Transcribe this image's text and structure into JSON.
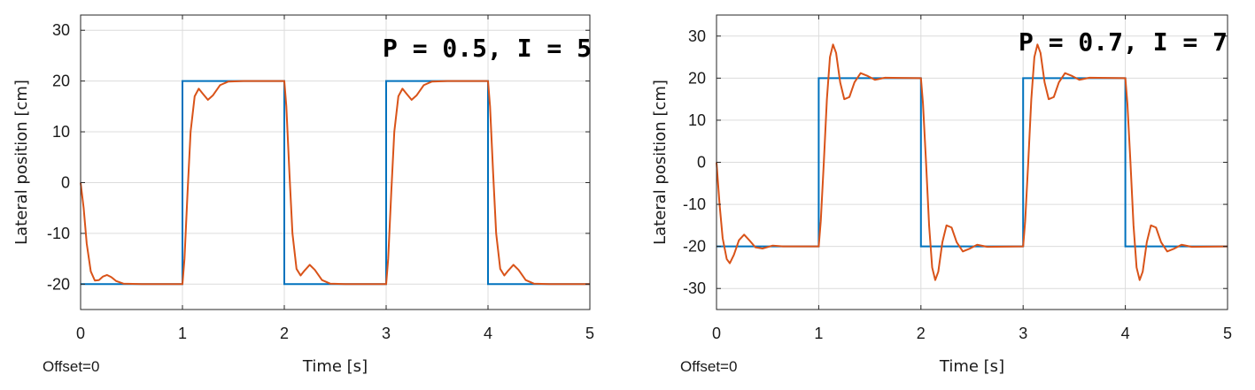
{
  "chart_data": [
    {
      "type": "line",
      "annotation": "P = 0.5, I = 5",
      "xlabel": "Time [s]",
      "ylabel": "Lateral position [cm]",
      "footnote": "Offset=0",
      "xlim": [
        0,
        5
      ],
      "ylim": [
        -25,
        33
      ],
      "xticks": [
        0,
        1,
        2,
        3,
        4,
        5
      ],
      "yticks": [
        -20,
        -10,
        0,
        10,
        20,
        30
      ],
      "grid": true,
      "series": [
        {
          "color": "#0072bd",
          "points": [
            [
              0,
              -20
            ],
            [
              1,
              -20
            ],
            [
              1,
              20
            ],
            [
              2,
              20
            ],
            [
              2,
              -20
            ],
            [
              3,
              -20
            ],
            [
              3,
              20
            ],
            [
              4,
              20
            ],
            [
              4,
              -20
            ],
            [
              5,
              -20
            ]
          ]
        },
        {
          "color": "#d95319",
          "points": [
            [
              0,
              0
            ],
            [
              0.03,
              -5
            ],
            [
              0.06,
              -12
            ],
            [
              0.1,
              -17.5
            ],
            [
              0.14,
              -19.3
            ],
            [
              0.18,
              -19.2
            ],
            [
              0.22,
              -18.5
            ],
            [
              0.26,
              -18.2
            ],
            [
              0.3,
              -18.6
            ],
            [
              0.35,
              -19.4
            ],
            [
              0.42,
              -19.9
            ],
            [
              0.6,
              -20
            ],
            [
              1.0,
              -20
            ],
            [
              1.02,
              -15
            ],
            [
              1.05,
              -2
            ],
            [
              1.08,
              10
            ],
            [
              1.12,
              17
            ],
            [
              1.16,
              18.5
            ],
            [
              1.2,
              17.5
            ],
            [
              1.25,
              16.3
            ],
            [
              1.3,
              17.2
            ],
            [
              1.37,
              19.2
            ],
            [
              1.45,
              19.9
            ],
            [
              1.6,
              20
            ],
            [
              2.0,
              20
            ],
            [
              2.02,
              15
            ],
            [
              2.05,
              2
            ],
            [
              2.08,
              -10
            ],
            [
              2.12,
              -17
            ],
            [
              2.16,
              -18.3
            ],
            [
              2.2,
              -17.3
            ],
            [
              2.25,
              -16.2
            ],
            [
              2.3,
              -17.2
            ],
            [
              2.37,
              -19.2
            ],
            [
              2.45,
              -19.9
            ],
            [
              2.6,
              -20
            ],
            [
              3.0,
              -20
            ],
            [
              3.02,
              -15
            ],
            [
              3.05,
              -2
            ],
            [
              3.08,
              10
            ],
            [
              3.12,
              17
            ],
            [
              3.16,
              18.5
            ],
            [
              3.2,
              17.5
            ],
            [
              3.25,
              16.3
            ],
            [
              3.3,
              17.2
            ],
            [
              3.37,
              19.2
            ],
            [
              3.45,
              19.9
            ],
            [
              3.6,
              20
            ],
            [
              4.0,
              20
            ],
            [
              4.02,
              15
            ],
            [
              4.05,
              2
            ],
            [
              4.08,
              -10
            ],
            [
              4.12,
              -17
            ],
            [
              4.16,
              -18.3
            ],
            [
              4.2,
              -17.3
            ],
            [
              4.25,
              -16.2
            ],
            [
              4.3,
              -17.2
            ],
            [
              4.37,
              -19.2
            ],
            [
              4.45,
              -19.9
            ],
            [
              4.6,
              -20
            ],
            [
              5.0,
              -20
            ]
          ]
        }
      ]
    },
    {
      "type": "line",
      "annotation": "P = 0.7, I = 7",
      "xlabel": "Time [s]",
      "ylabel": "Lateral position [cm]",
      "footnote": "Offset=0",
      "xlim": [
        0,
        5
      ],
      "ylim": [
        -35,
        35
      ],
      "xticks": [
        0,
        1,
        2,
        3,
        4,
        5
      ],
      "yticks": [
        -30,
        -20,
        -10,
        0,
        10,
        20,
        30
      ],
      "grid": true,
      "series": [
        {
          "color": "#0072bd",
          "points": [
            [
              0,
              -20
            ],
            [
              1,
              -20
            ],
            [
              1,
              20
            ],
            [
              2,
              20
            ],
            [
              2,
              -20
            ],
            [
              3,
              -20
            ],
            [
              3,
              20
            ],
            [
              4,
              20
            ],
            [
              4,
              -20
            ],
            [
              5,
              -20
            ]
          ]
        },
        {
          "color": "#d95319",
          "points": [
            [
              0,
              0
            ],
            [
              0.03,
              -10
            ],
            [
              0.06,
              -18
            ],
            [
              0.1,
              -23
            ],
            [
              0.13,
              -24
            ],
            [
              0.17,
              -22
            ],
            [
              0.22,
              -18.5
            ],
            [
              0.27,
              -17.2
            ],
            [
              0.32,
              -18.5
            ],
            [
              0.38,
              -20.2
            ],
            [
              0.45,
              -20.5
            ],
            [
              0.55,
              -19.8
            ],
            [
              0.65,
              -20
            ],
            [
              1.0,
              -20
            ],
            [
              1.02,
              -14
            ],
            [
              1.05,
              0
            ],
            [
              1.08,
              15
            ],
            [
              1.11,
              25
            ],
            [
              1.14,
              28
            ],
            [
              1.17,
              26
            ],
            [
              1.21,
              19
            ],
            [
              1.25,
              15
            ],
            [
              1.3,
              15.5
            ],
            [
              1.35,
              19
            ],
            [
              1.41,
              21.2
            ],
            [
              1.48,
              20.5
            ],
            [
              1.55,
              19.6
            ],
            [
              1.65,
              20.1
            ],
            [
              2.0,
              20
            ],
            [
              2.02,
              14
            ],
            [
              2.05,
              0
            ],
            [
              2.08,
              -15
            ],
            [
              2.11,
              -25
            ],
            [
              2.14,
              -28
            ],
            [
              2.17,
              -26
            ],
            [
              2.21,
              -19
            ],
            [
              2.25,
              -15
            ],
            [
              2.3,
              -15.5
            ],
            [
              2.35,
              -19
            ],
            [
              2.41,
              -21.2
            ],
            [
              2.48,
              -20.5
            ],
            [
              2.55,
              -19.6
            ],
            [
              2.65,
              -20.1
            ],
            [
              3.0,
              -20
            ],
            [
              3.02,
              -14
            ],
            [
              3.05,
              0
            ],
            [
              3.08,
              15
            ],
            [
              3.11,
              25
            ],
            [
              3.14,
              28
            ],
            [
              3.17,
              26
            ],
            [
              3.21,
              19
            ],
            [
              3.25,
              15
            ],
            [
              3.3,
              15.5
            ],
            [
              3.35,
              19
            ],
            [
              3.41,
              21.2
            ],
            [
              3.48,
              20.5
            ],
            [
              3.55,
              19.6
            ],
            [
              3.65,
              20.1
            ],
            [
              4.0,
              20
            ],
            [
              4.02,
              14
            ],
            [
              4.05,
              0
            ],
            [
              4.08,
              -15
            ],
            [
              4.11,
              -25
            ],
            [
              4.14,
              -28
            ],
            [
              4.17,
              -26
            ],
            [
              4.21,
              -19
            ],
            [
              4.25,
              -15
            ],
            [
              4.3,
              -15.5
            ],
            [
              4.35,
              -19
            ],
            [
              4.41,
              -21.2
            ],
            [
              4.48,
              -20.5
            ],
            [
              4.55,
              -19.6
            ],
            [
              4.65,
              -20.1
            ],
            [
              5.0,
              -20
            ]
          ]
        }
      ]
    }
  ]
}
